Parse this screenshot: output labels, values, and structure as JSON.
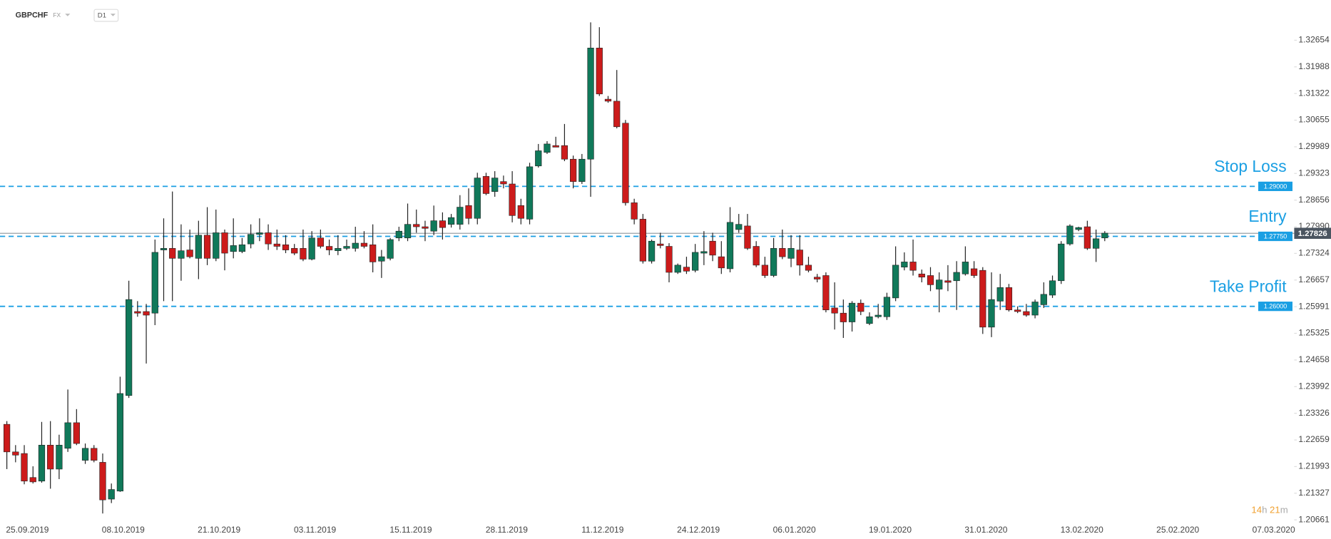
{
  "header": {
    "symbol": "GBPCHF",
    "market": "FX",
    "interval": "D1"
  },
  "countdown_parts": [
    "14",
    "h",
    "21",
    "m"
  ],
  "chart_data": {
    "type": "candlestick",
    "up_color": "#10795a",
    "down_color": "#cc1b1b",
    "ylim": [
      1.2061,
      1.3366
    ],
    "yticks": [
      1.32654,
      1.31988,
      1.31322,
      1.30655,
      1.29989,
      1.29323,
      1.28656,
      {
        "value": 1.2799,
        "label": "1.27990"
      },
      1.27324,
      1.26657,
      1.25991,
      1.25325,
      1.24658,
      1.23992,
      1.23326,
      1.22659,
      1.21993,
      1.21327,
      1.20661
    ],
    "x_labels": [
      "25.09.2019",
      "08.10.2019",
      "21.10.2019",
      "03.11.2019",
      "15.11.2019",
      "28.11.2019",
      "11.12.2019",
      "24.12.2019",
      "06.01.2020",
      "19.01.2020",
      "31.01.2020",
      "13.02.2020",
      "25.02.2020",
      "07.03.2020"
    ],
    "open": [
      1.2305,
      1.2236,
      1.2232,
      1.2172,
      1.2163,
      1.2253,
      1.2193,
      1.2245,
      1.2309,
      1.2215,
      1.2245,
      1.221,
      1.2118,
      1.2138,
      1.2377,
      1.2587,
      1.2587,
      1.2583,
      1.2741,
      1.2745,
      1.272,
      1.2741,
      1.272,
      1.2778,
      1.272,
      1.2784,
      1.2737,
      1.2737,
      1.2756,
      1.278,
      1.2784,
      1.2756,
      1.2754,
      1.2745,
      1.2745,
      1.2718,
      1.2771,
      1.275,
      1.2739,
      1.2745,
      1.2745,
      1.2758,
      1.2754,
      1.2713,
      1.272,
      1.2771,
      1.2771,
      1.2805,
      1.2799,
      1.2788,
      1.2814,
      1.2805,
      1.2805,
      1.2852,
      1.282,
      1.2925,
      1.2887,
      1.2912,
      1.2906,
      1.2852,
      1.2818,
      1.2951,
      1.2985,
      1.3002,
      1.3002,
      1.2968,
      1.2912,
      1.2968,
      1.3246,
      1.3118,
      1.3113,
      1.3058,
      1.2859,
      1.2818,
      1.2713,
      1.2756,
      1.275,
      1.2685,
      1.2698,
      1.269,
      1.2733,
      1.2763,
      1.2724,
      1.2694,
      1.2792,
      1.2801,
      1.275,
      1.2703,
      1.2677,
      1.2745,
      1.272,
      1.2741,
      1.2703,
      1.2673,
      1.2677,
      1.2596,
      1.2583,
      1.2561,
      1.2608,
      1.2557,
      1.2574,
      1.2574,
      1.2621,
      1.2698,
      1.2711,
      1.2681,
      1.2677,
      1.2643,
      1.2664,
      1.2664,
      1.2681,
      1.2694,
      1.269,
      1.2548,
      1.2613,
      1.2647,
      1.2591,
      1.2587,
      1.2578,
      1.2604,
      1.2628,
      1.2664,
      1.2756,
      1.2792,
      1.2799,
      1.2745,
      1.2771
    ],
    "high": [
      1.2313,
      1.2253,
      1.2253,
      1.22,
      1.2311,
      1.2313,
      1.2279,
      1.2392,
      1.2343,
      1.2257,
      1.2253,
      1.2232,
      1.2157,
      1.2424,
      1.2664,
      1.2613,
      1.2606,
      1.2767,
      1.282,
      1.2887,
      1.2805,
      1.2792,
      1.2814,
      1.2848,
      1.2842,
      1.2792,
      1.282,
      1.2771,
      1.2805,
      1.282,
      1.2805,
      1.2792,
      1.2778,
      1.2756,
      1.2792,
      1.2788,
      1.2792,
      1.2767,
      1.2778,
      1.2767,
      1.2799,
      1.2788,
      1.2805,
      1.2741,
      1.2771,
      1.2799,
      1.2857,
      1.2842,
      1.2814,
      1.2852,
      1.2835,
      1.2831,
      1.2878,
      1.2895,
      1.2934,
      1.2934,
      1.2938,
      1.2927,
      1.2938,
      1.2869,
      1.2959,
      1.3006,
      1.3013,
      1.3024,
      1.3056,
      1.2977,
      1.2981,
      1.331,
      1.3298,
      1.3126,
      1.3191,
      1.3066,
      1.2869,
      1.2831,
      1.2767,
      1.2784,
      1.2758,
      1.2707,
      1.2724,
      1.2756,
      1.2788,
      1.2784,
      1.2763,
      1.2848,
      1.2831,
      1.2831,
      1.2763,
      1.2724,
      1.2771,
      1.2792,
      1.2778,
      1.2778,
      1.2724,
      1.2681,
      1.2685,
      1.266,
      1.2617,
      1.2613,
      1.2617,
      1.2585,
      1.2606,
      1.2634,
      1.275,
      1.2735,
      1.2767,
      1.2692,
      1.2698,
      1.2685,
      1.2703,
      1.2713,
      1.275,
      1.2713,
      1.2698,
      1.2685,
      1.2681,
      1.2656,
      1.26,
      1.2606,
      1.2617,
      1.266,
      1.2677,
      1.2763,
      1.2805,
      1.2799,
      1.2814,
      1.2792,
      1.2788
    ],
    "low": [
      1.2193,
      1.221,
      1.2155,
      1.2157,
      1.2159,
      1.2144,
      1.2168,
      1.2236,
      1.2253,
      1.2206,
      1.221,
      1.2082,
      1.2108,
      1.2136,
      1.2371,
      1.2574,
      1.2457,
      1.2553,
      1.2613,
      1.2613,
      1.2664,
      1.272,
      1.2668,
      1.2703,
      1.2713,
      1.269,
      1.272,
      1.2733,
      1.2745,
      1.2763,
      1.2741,
      1.2741,
      1.2733,
      1.2728,
      1.2713,
      1.2715,
      1.2745,
      1.2728,
      1.2728,
      1.2741,
      1.2737,
      1.2745,
      1.2685,
      1.2671,
      1.2715,
      1.2763,
      1.2763,
      1.2784,
      1.2763,
      1.2778,
      1.2767,
      1.2797,
      1.2792,
      1.2805,
      1.2805,
      1.2878,
      1.2874,
      1.2895,
      1.281,
      1.2805,
      1.2805,
      1.2947,
      1.2981,
      1.2998,
      1.2963,
      1.2895,
      1.2906,
      1.2874,
      1.3126,
      1.3109,
      1.3045,
      1.2852,
      1.2805,
      1.2707,
      1.2707,
      1.2745,
      1.266,
      1.2681,
      1.2681,
      1.2685,
      1.2703,
      1.2713,
      1.2681,
      1.2685,
      1.2784,
      1.2741,
      1.2698,
      1.2671,
      1.2673,
      1.2718,
      1.2698,
      1.2677,
      1.2685,
      1.266,
      1.2585,
      1.2542,
      1.2521,
      1.2537,
      1.2578,
      1.2553,
      1.257,
      1.2566,
      1.2613,
      1.269,
      1.2677,
      1.266,
      1.2638,
      1.2585,
      1.2638,
      1.2591,
      1.2677,
      1.2671,
      1.2531,
      1.2523,
      1.2591,
      1.2587,
      1.2583,
      1.2574,
      1.257,
      1.2596,
      1.2621,
      1.2656,
      1.2752,
      1.2788,
      1.2741,
      1.2711,
      1.2763
    ],
    "close": [
      1.2236,
      1.2228,
      1.2163,
      1.2161,
      1.2253,
      1.2193,
      1.2253,
      1.2309,
      1.2257,
      1.2245,
      1.2215,
      1.2116,
      1.2142,
      1.2382,
      1.2617,
      1.2583,
      1.2578,
      1.2735,
      1.2745,
      1.272,
      1.2739,
      1.2724,
      1.2778,
      1.272,
      1.2784,
      1.2733,
      1.2752,
      1.2754,
      1.278,
      1.2784,
      1.2756,
      1.275,
      1.2741,
      1.2733,
      1.2718,
      1.2771,
      1.275,
      1.2741,
      1.2745,
      1.275,
      1.2758,
      1.275,
      1.2711,
      1.2724,
      1.2767,
      1.2788,
      1.2805,
      1.2799,
      1.2795,
      1.2814,
      1.2797,
      1.2822,
      1.2848,
      1.282,
      1.2921,
      1.2882,
      1.2921,
      1.2906,
      1.2827,
      1.282,
      1.2949,
      1.2989,
      1.3006,
      1.2998,
      1.2968,
      1.2912,
      1.2968,
      1.3246,
      1.3131,
      1.3113,
      1.3049,
      1.2859,
      1.2818,
      1.2713,
      1.2763,
      1.2752,
      1.2685,
      1.2703,
      1.2688,
      1.2735,
      1.2737,
      1.2728,
      1.2696,
      1.281,
      1.2805,
      1.2745,
      1.2703,
      1.2677,
      1.2745,
      1.2724,
      1.2745,
      1.2703,
      1.269,
      1.2668,
      1.2591,
      1.2583,
      1.2561,
      1.2608,
      1.2587,
      1.2574,
      1.2578,
      1.2623,
      1.2703,
      1.2711,
      1.269,
      1.2673,
      1.2654,
      1.2666,
      1.266,
      1.2685,
      1.2711,
      1.2677,
      1.2548,
      1.2617,
      1.2647,
      1.2591,
      1.2587,
      1.2578,
      1.2611,
      1.263,
      1.2664,
      1.2756,
      1.2801,
      1.2797,
      1.2745,
      1.2769,
      1.2783
    ],
    "current_price": {
      "value": 1.27826,
      "label": "1.27826",
      "color": "#4b5560"
    },
    "levels": [
      {
        "name": "Stop Loss",
        "value": 1.29,
        "label": "1.29000"
      },
      {
        "name": "Entry",
        "value": 1.2775,
        "label": "1.27750"
      },
      {
        "name": "Take Profit",
        "value": 1.26,
        "label": "1.26000"
      }
    ],
    "level_color": "#1a9fe3"
  }
}
